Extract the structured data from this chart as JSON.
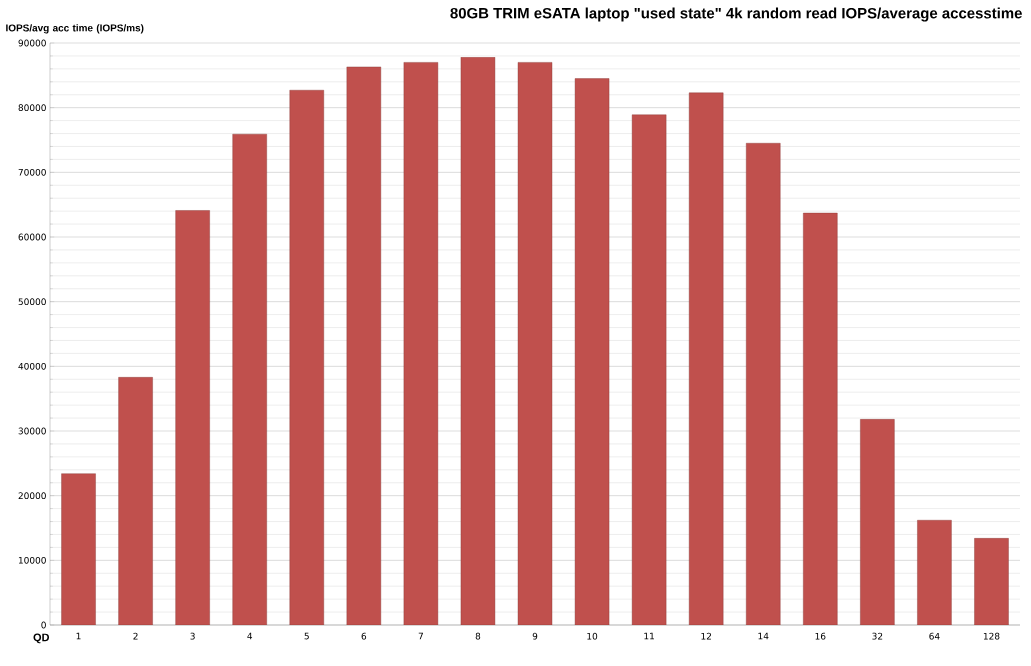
{
  "chart_data": {
    "type": "bar",
    "title": "80GB TRIM eSATA laptop \"used state\" 4k random read IOPS/average accesstime",
    "xlabel": "QD",
    "ylabel": "IOPS/avg acc time (IOPS/ms)",
    "categories": [
      "1",
      "2",
      "3",
      "4",
      "5",
      "6",
      "7",
      "8",
      "9",
      "10",
      "11",
      "12",
      "14",
      "16",
      "32",
      "64",
      "128"
    ],
    "values": [
      23400,
      38300,
      64100,
      75900,
      82700,
      86300,
      87000,
      87800,
      87000,
      84500,
      78900,
      82300,
      74500,
      63700,
      31800,
      16200,
      13400
    ],
    "color": "#c0504d",
    "ylim": [
      0,
      90000
    ],
    "yticks": [
      0,
      10000,
      20000,
      30000,
      40000,
      50000,
      60000,
      70000,
      80000,
      90000
    ],
    "grid": "y"
  }
}
